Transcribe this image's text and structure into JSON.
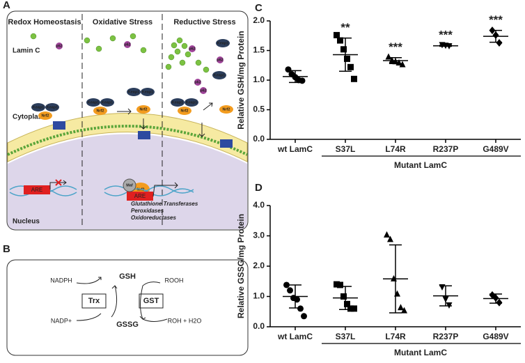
{
  "figure": {
    "panel_a": "A",
    "panel_b": "B",
    "panel_c": "C",
    "panel_d": "D"
  },
  "diagram_a": {
    "columns": [
      "Redox Homeostasis",
      "Oxidative Stress",
      "Reductive Stress"
    ],
    "lamin_c": "Lamin C",
    "cytoplasm": "Cytoplasm",
    "nucleus": "Nucleus",
    "keap1": "Keap1",
    "nrf2": "Nrf2",
    "p62": "p62",
    "maf": "Maf",
    "are": "ARE",
    "genes": [
      "Glutathione Transferases",
      "Peroxidases",
      "Oxidoreductases"
    ]
  },
  "diagram_b": {
    "nadph": "NADPH",
    "gsh": "GSH",
    "rooh": "ROOH",
    "trx": "Trx",
    "gst": "GST",
    "nadp": "NADP+",
    "gssg": "GSSG",
    "roh": "ROH + H2O"
  },
  "chart_data": [
    {
      "type": "dot",
      "ylabel": "Relative GSH/mg Protein",
      "color": "#000000",
      "categories": [
        "wt LamC",
        "S37L",
        "L74R",
        "R237P",
        "G489V"
      ],
      "group_label": "Mutant LamC",
      "annotations": [
        null,
        "**",
        "***",
        "***",
        "***"
      ],
      "markers": [
        "circle",
        "square",
        "triangle",
        "triangle-down",
        "diamond"
      ],
      "points": [
        [
          1.18,
          1.1,
          1.05,
          1.0,
          0.99
        ],
        [
          1.76,
          1.67,
          1.52,
          1.36,
          1.22,
          1.02
        ],
        [
          1.4,
          1.34,
          1.32,
          1.3,
          1.27
        ],
        [
          1.59,
          1.58,
          1.57
        ],
        [
          1.84,
          1.76,
          1.63
        ]
      ],
      "means": [
        1.06,
        1.43,
        1.33,
        1.58,
        1.74
      ],
      "sds": [
        0.1,
        0.28,
        0.05,
        0.01,
        0.1
      ],
      "ylim": [
        0,
        2
      ],
      "yticks": [
        {
          "value": 0,
          "label": "0.0"
        },
        {
          "value": 0.5,
          "label": "0.5"
        },
        {
          "value": 1,
          "label": "1.0"
        },
        {
          "value": 1.5,
          "label": "1.5"
        },
        {
          "value": 2,
          "label": "2.0"
        }
      ]
    },
    {
      "type": "dot",
      "ylabel": "Relative GSSG/mg Protein",
      "color": "#000000",
      "categories": [
        "wt LamC",
        "S37L",
        "L74R",
        "R237P",
        "G489V"
      ],
      "group_label": "Mutant LamC",
      "markers": [
        "circle",
        "square",
        "triangle",
        "triangle-down",
        "diamond"
      ],
      "points": [
        [
          1.38,
          1.2,
          0.95,
          0.9,
          0.6,
          0.35
        ],
        [
          1.4,
          1.38,
          1.0,
          0.75,
          0.6,
          0.6
        ],
        [
          3.05,
          2.9,
          1.6,
          1.1,
          0.65,
          0.55
        ],
        [
          1.3,
          0.9,
          0.7
        ],
        [
          1.05,
          0.95,
          0.8
        ]
      ],
      "means": [
        1.0,
        0.95,
        1.58,
        1.02,
        0.93
      ],
      "sds": [
        0.38,
        0.38,
        1.12,
        0.33,
        0.15
      ],
      "ylim": [
        0,
        4
      ],
      "yticks": [
        {
          "value": 0,
          "label": "0.0"
        },
        {
          "value": 1,
          "label": "1.0"
        },
        {
          "value": 2,
          "label": "2.0"
        },
        {
          "value": 3,
          "label": "3.0"
        },
        {
          "value": 4,
          "label": "4.0"
        }
      ]
    }
  ]
}
